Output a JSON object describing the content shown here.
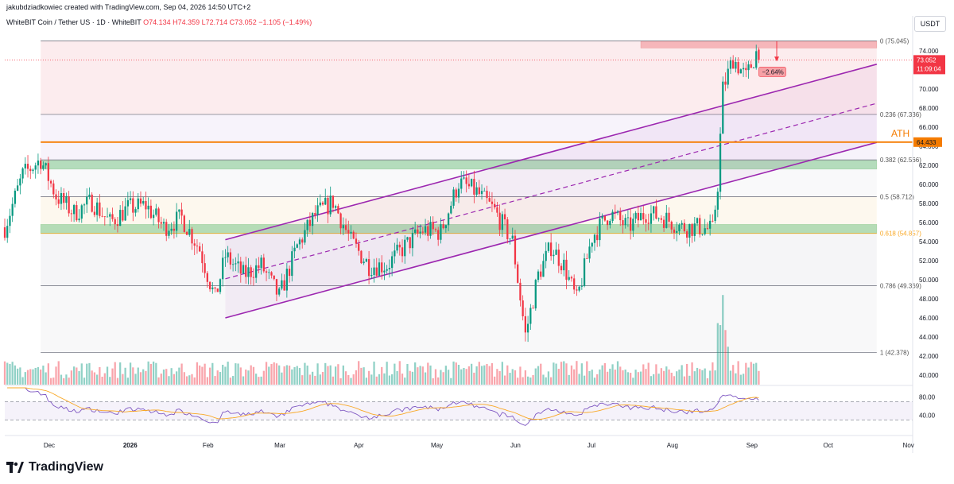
{
  "header": {
    "created_by": "jakubdziadkowiec created with TradingView.com, Sep 04, 2026 14:50 UTC+2",
    "symbol_desc": "WhiteBIT Coin / Tether US · 1D · WhiteBIT",
    "ohlc": "O74.134  H74.359  L72.714  C73.052  −1.105 (−1.49%)"
  },
  "currency": "USDT",
  "brand": "TradingView",
  "colors": {
    "up": "#089981",
    "down": "#f23645",
    "channel": "#9c27b0",
    "ath": "#f57c00",
    "support_zone": "#7cc68a",
    "resistance_zone": "#f4a0a5",
    "rsi_line": "#7e57c2",
    "rsi_ma": "#f9a825"
  },
  "chart_data": {
    "type": "candlestick",
    "symbol": "WBT/USDT",
    "timeframe": "1D",
    "last_price": 73.052,
    "last_price_label": "73.052",
    "countdown_label": "11:09:04",
    "ylim": [
      39,
      76
    ],
    "y_ticks": [
      "74.000",
      "72.000",
      "70.000",
      "68.000",
      "66.000",
      "64.000",
      "62.000",
      "60.000",
      "58.000",
      "56.000",
      "54.000",
      "52.000",
      "50.000",
      "48.000",
      "46.000",
      "44.000",
      "42.000",
      "40.000"
    ],
    "x_ticks": [
      "Dec",
      "2026",
      "Feb",
      "Mar",
      "Apr",
      "May",
      "Jun",
      "Jul",
      "Aug",
      "Sep",
      "Oct",
      "Nov"
    ],
    "fib_levels": [
      {
        "ratio": "0",
        "price": 75.045,
        "label": "0 (75.045)"
      },
      {
        "ratio": "0.236",
        "price": 67.336,
        "label": "0.236 (67.336)"
      },
      {
        "ratio": "0.382",
        "price": 62.566,
        "label": "0.382 (62.566)"
      },
      {
        "ratio": "0.5",
        "price": 58.712,
        "label": "0.5 (58.712)"
      },
      {
        "ratio": "0.618",
        "price": 54.857,
        "label": "0.618 (54.857)"
      },
      {
        "ratio": "0.786",
        "price": 49.369,
        "label": "0.786 (49.369)"
      },
      {
        "ratio": "1",
        "price": 42.378,
        "label": "1 (42.378)"
      }
    ],
    "ath": {
      "label": "ATH",
      "price": 64.433,
      "price_label": "64.433"
    },
    "support_zones": [
      [
        61.6,
        62.5
      ],
      [
        54.9,
        55.8
      ]
    ],
    "resistance_zone": [
      74.3,
      75.0
    ],
    "projection_label": "−2.64%",
    "rsi": {
      "ticks": [
        "80.00",
        "40.00"
      ],
      "upper": 70,
      "lower": 30
    },
    "anchor_closes": [
      [
        "2025-11-21",
        61.0
      ],
      [
        "2025-11-28",
        62.6
      ],
      [
        "2025-12-04",
        58.8
      ],
      [
        "2025-12-11",
        57.0
      ],
      [
        "2025-12-18",
        58.2
      ],
      [
        "2025-12-25",
        56.0
      ],
      [
        "2026-01-01",
        57.5
      ],
      [
        "2026-01-08",
        57.8
      ],
      [
        "2026-01-15",
        55.5
      ],
      [
        "2026-01-22",
        56.5
      ],
      [
        "2026-01-29",
        53.2
      ],
      [
        "2026-02-04",
        48.0
      ],
      [
        "2026-02-08",
        52.5
      ],
      [
        "2026-02-15",
        50.5
      ],
      [
        "2026-02-22",
        51.5
      ],
      [
        "2026-03-01",
        48.2
      ],
      [
        "2026-03-08",
        53.5
      ],
      [
        "2026-03-15",
        56.8
      ],
      [
        "2026-03-22",
        58.2
      ],
      [
        "2026-03-29",
        54.0
      ],
      [
        "2026-04-05",
        51.5
      ],
      [
        "2026-04-12",
        51.5
      ],
      [
        "2026-04-19",
        53.5
      ],
      [
        "2026-04-26",
        55.2
      ],
      [
        "2026-05-03",
        55.0
      ],
      [
        "2026-05-10",
        60.2
      ],
      [
        "2026-05-17",
        59.2
      ],
      [
        "2026-05-24",
        57.2
      ],
      [
        "2026-05-31",
        54.0
      ],
      [
        "2026-06-05",
        44.2
      ],
      [
        "2026-06-10",
        50.5
      ],
      [
        "2026-06-15",
        53.5
      ],
      [
        "2026-06-20",
        51.5
      ],
      [
        "2026-06-25",
        47.8
      ],
      [
        "2026-07-01",
        54.5
      ],
      [
        "2026-07-08",
        57.0
      ],
      [
        "2026-07-15",
        55.5
      ],
      [
        "2026-07-22",
        57.0
      ],
      [
        "2026-07-29",
        56.5
      ],
      [
        "2026-08-05",
        55.5
      ],
      [
        "2026-08-12",
        55.5
      ],
      [
        "2026-08-17",
        55.2
      ],
      [
        "2026-08-19",
        60.0
      ],
      [
        "2026-08-21",
        70.0
      ],
      [
        "2026-08-25",
        73.2
      ],
      [
        "2026-08-30",
        71.2
      ],
      [
        "2026-09-03",
        73.8
      ],
      [
        "2026-09-04",
        73.052
      ]
    ]
  }
}
